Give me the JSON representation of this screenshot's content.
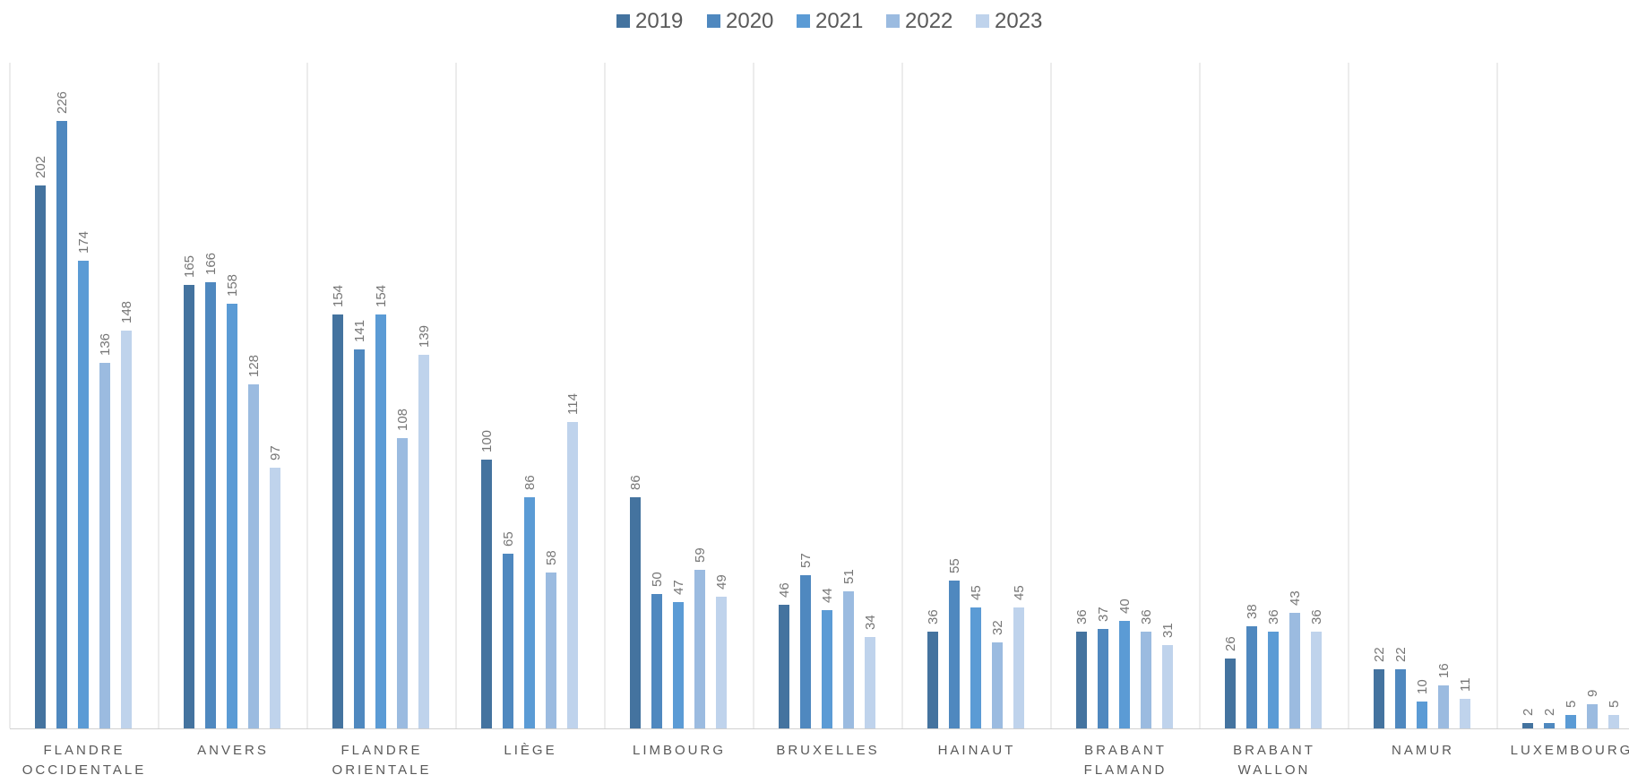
{
  "chart_data": {
    "type": "bar",
    "categories": [
      [
        "FLANDRE",
        "OCCIDENTALE"
      ],
      [
        "ANVERS"
      ],
      [
        "FLANDRE",
        "ORIENTALE"
      ],
      [
        "LIÈGE"
      ],
      [
        "LIMBOURG"
      ],
      [
        "BRUXELLES"
      ],
      [
        "HAINAUT"
      ],
      [
        "BRABANT",
        "FLAMAND"
      ],
      [
        "BRABANT",
        "WALLON"
      ],
      [
        "NAMUR"
      ],
      [
        "LUXEMBOURG"
      ]
    ],
    "series": [
      {
        "name": "2019",
        "color": "#44739f",
        "values": [
          202,
          165,
          154,
          100,
          86,
          46,
          36,
          36,
          26,
          22,
          2
        ]
      },
      {
        "name": "2020",
        "color": "#4f88bf",
        "values": [
          226,
          166,
          141,
          65,
          50,
          57,
          55,
          37,
          38,
          22,
          2
        ]
      },
      {
        "name": "2021",
        "color": "#5b9bd5",
        "values": [
          174,
          158,
          154,
          86,
          47,
          44,
          45,
          40,
          36,
          10,
          5
        ]
      },
      {
        "name": "2022",
        "color": "#9bbbe0",
        "values": [
          136,
          128,
          108,
          58,
          59,
          51,
          32,
          36,
          43,
          16,
          9
        ]
      },
      {
        "name": "2023",
        "color": "#bfd3ec",
        "values": [
          148,
          97,
          139,
          114,
          49,
          34,
          45,
          31,
          36,
          11,
          5
        ]
      }
    ],
    "legend_position": "top-center",
    "grid": "vertical-category-separators",
    "ylim": [
      0,
      250
    ],
    "data_labels": true
  }
}
